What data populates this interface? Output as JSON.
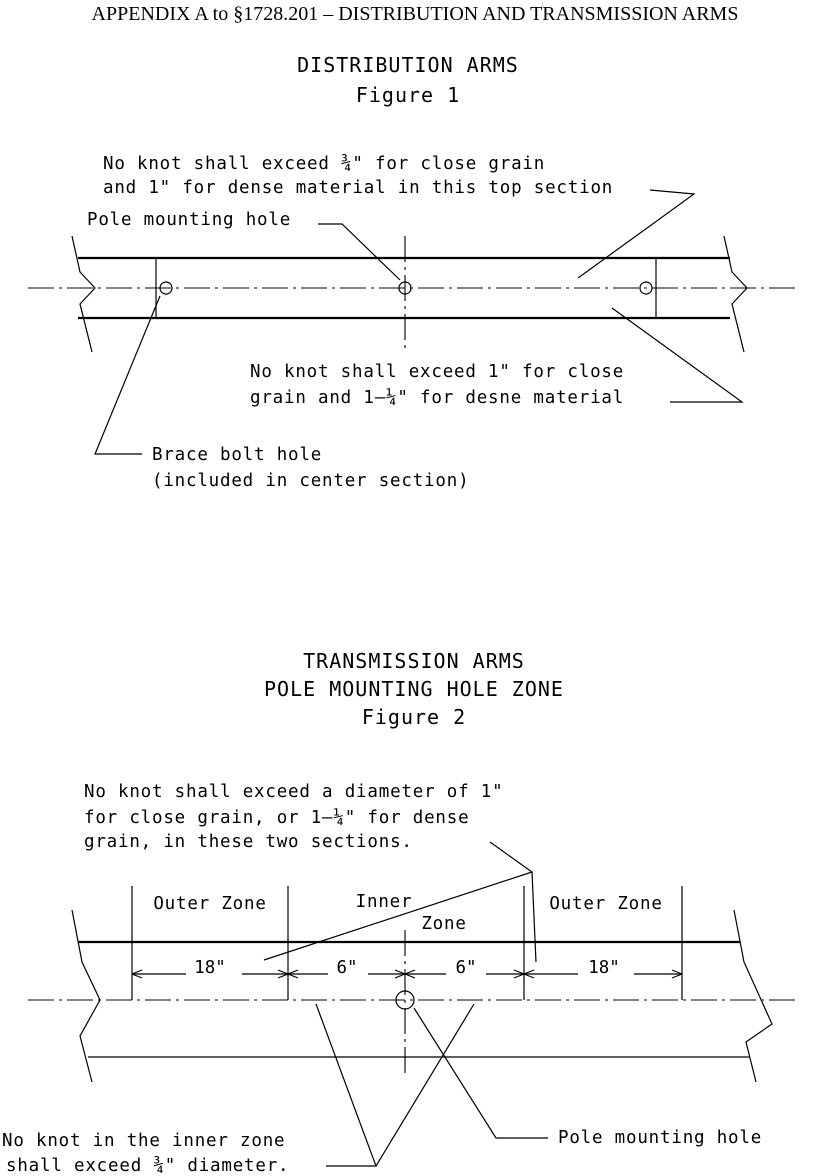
{
  "page": {
    "title": "APPENDIX A to §1728.201 – DISTRIBUTION AND TRANSMISSION ARMS"
  },
  "figure1": {
    "title_line1": "DISTRIBUTION ARMS",
    "title_line2": "Figure 1",
    "note_top_line1": "No knot shall exceed ¾\" for close grain",
    "note_top_line2": "and 1\" for dense material in this top section",
    "pole_hole_label": "Pole mounting hole",
    "note_center_line1": "No knot shall exceed 1\" for close",
    "note_center_line2": "grain and 1–¼\" for desne material",
    "brace_line1": "Brace bolt hole",
    "brace_line2": "(included in center section)"
  },
  "figure2": {
    "title_line1": "TRANSMISSION ARMS",
    "title_line2": "POLE MOUNTING HOLE ZONE",
    "title_line3": "Figure 2",
    "note_top_line1": "No knot shall exceed a diameter of 1\"",
    "note_top_line2": "for close grain, or 1–¼\" for dense",
    "note_top_line3": "grain, in these two sections.",
    "zone_outer_left": "Outer Zone",
    "zone_inner_line1": "Inner",
    "zone_inner_line2": "Zone",
    "zone_outer_right": "Outer Zone",
    "dim_outer_left": "18\"",
    "dim_inner_left": "6\"",
    "dim_inner_right": "6\"",
    "dim_outer_right": "18\"",
    "note_inner_line1": "No knot in the inner zone",
    "note_inner_line2": "shall exceed ¾\" diameter.",
    "pole_hole_label": "Pole mounting hole"
  }
}
